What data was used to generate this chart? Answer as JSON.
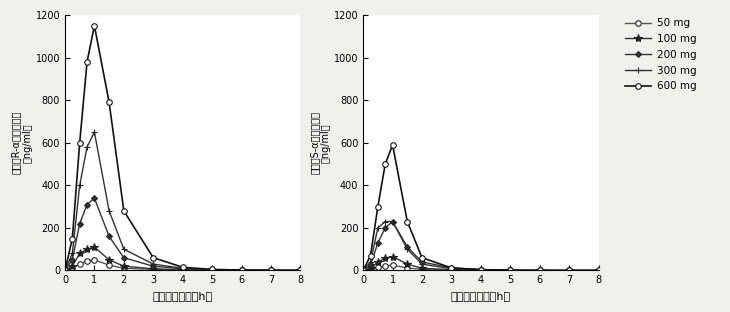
{
  "time_points": [
    0,
    0.25,
    0.5,
    0.75,
    1.0,
    1.5,
    2.0,
    3.0,
    4.0,
    5.0,
    6.0,
    7.0,
    8.0
  ],
  "R_data": {
    "50mg": [
      0,
      10,
      30,
      45,
      50,
      25,
      10,
      5,
      2,
      1,
      0,
      0,
      0
    ],
    "100mg": [
      0,
      20,
      80,
      100,
      110,
      50,
      20,
      8,
      3,
      1,
      0,
      0,
      0
    ],
    "200mg": [
      0,
      50,
      220,
      310,
      340,
      160,
      60,
      20,
      8,
      3,
      1,
      0,
      0
    ],
    "300mg": [
      0,
      80,
      400,
      580,
      650,
      280,
      100,
      30,
      10,
      4,
      1,
      0,
      0
    ],
    "600mg": [
      0,
      150,
      600,
      980,
      1150,
      790,
      280,
      60,
      15,
      5,
      2,
      1,
      0
    ]
  },
  "S_data": {
    "50mg": [
      0,
      5,
      15,
      22,
      25,
      12,
      5,
      2,
      1,
      0,
      0,
      0,
      0
    ],
    "100mg": [
      0,
      10,
      40,
      58,
      65,
      30,
      10,
      4,
      1,
      0,
      0,
      0,
      0
    ],
    "200mg": [
      0,
      25,
      130,
      200,
      230,
      110,
      40,
      12,
      4,
      1,
      0,
      0,
      0
    ],
    "300mg": [
      0,
      40,
      200,
      230,
      230,
      100,
      30,
      8,
      3,
      1,
      0,
      0,
      0
    ],
    "600mg": [
      0,
      70,
      300,
      500,
      590,
      230,
      60,
      12,
      4,
      1,
      0,
      0,
      0
    ]
  },
  "doses": [
    "50mg",
    "100mg",
    "200mg",
    "300mg",
    "600mg"
  ],
  "legend_labels": [
    "50 mg",
    "100 mg",
    "200 mg",
    "300 mg",
    "600 mg"
  ],
  "marker_styles": [
    {
      "marker": "o",
      "markersize": 4,
      "mfc": "white",
      "mec": "#222222",
      "lw": 1.0,
      "color": "#555555"
    },
    {
      "marker": "*",
      "markersize": 6,
      "mfc": "#222222",
      "mec": "#222222",
      "lw": 1.0,
      "color": "#333333"
    },
    {
      "marker": "D",
      "markersize": 3,
      "mfc": "#333333",
      "mec": "#222222",
      "lw": 1.0,
      "color": "#333333"
    },
    {
      "marker": "+",
      "markersize": 5,
      "mfc": "#222222",
      "mec": "#222222",
      "lw": 1.0,
      "color": "#333333"
    },
    {
      "marker": "o",
      "markersize": 4,
      "mfc": "white",
      "mec": "#111111",
      "lw": 1.2,
      "color": "#111111"
    }
  ],
  "left_ylabel_line1": "血潏中R-αリポ酸濃度",
  "left_ylabel_line2": "（ng/ml）",
  "right_ylabel_line1": "血潏中S-αリポ酸濃度",
  "right_ylabel_line2": "（ng/ml）",
  "xlabel": "摂取後の時間（h）",
  "ylim": [
    0,
    1200
  ],
  "xlim": [
    0,
    8
  ],
  "yticks": [
    0,
    200,
    400,
    600,
    800,
    1000,
    1200
  ],
  "xticks": [
    0,
    1,
    2,
    3,
    4,
    5,
    6,
    7,
    8
  ],
  "background_color": "#f2f0ed",
  "plot_bg_color": "#ffffff"
}
